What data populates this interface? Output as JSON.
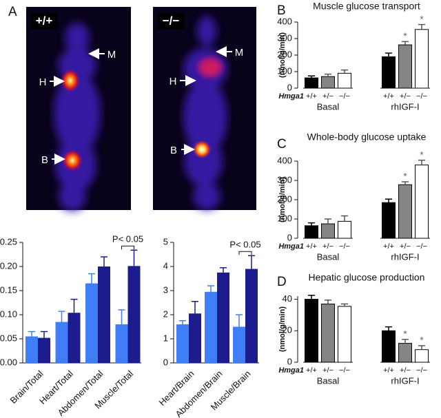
{
  "panel_labels": [
    "A",
    "B",
    "C",
    "D"
  ],
  "images": [
    {
      "genotype": "+/+",
      "markers": [
        "M",
        "H",
        "B"
      ]
    },
    {
      "genotype": "−/−",
      "markers": [
        "M",
        "H",
        "B"
      ]
    }
  ],
  "chart_data": [
    {
      "type": "bar",
      "categories": [
        "Brain/Total",
        "Heart/Total",
        "Abdomen/Total",
        "Muscle/Total"
      ],
      "series": [
        {
          "color": "#3f7ef6",
          "values": [
            0.055,
            0.085,
            0.165,
            0.08
          ],
          "errors": [
            0.01,
            0.022,
            0.02,
            0.03
          ]
        },
        {
          "color": "#1c1c8e",
          "values": [
            0.052,
            0.104,
            0.2,
            0.201
          ],
          "errors": [
            0.013,
            0.028,
            0.02,
            0.033
          ]
        }
      ],
      "ylim": [
        0,
        0.25
      ],
      "yticks": [
        {
          "value": 0,
          "label": "0.00"
        },
        {
          "value": 0.05,
          "label": "0.05"
        },
        {
          "value": 0.1,
          "label": "0.10"
        },
        {
          "value": 0.15,
          "label": "0.15"
        },
        {
          "value": 0.2,
          "label": "0.20"
        },
        {
          "value": 0.25,
          "label": "0.25"
        }
      ],
      "annotation": "P< 0.05"
    },
    {
      "type": "bar",
      "categories": [
        "Heart/Brain",
        "Abdomen/Brain",
        "Muscle/Brain"
      ],
      "series": [
        {
          "color": "#3f7ef6",
          "values": [
            1.6,
            2.95,
            1.5
          ],
          "errors": [
            0.15,
            0.25,
            0.5
          ]
        },
        {
          "color": "#1c1c8e",
          "values": [
            2.05,
            3.75,
            3.9
          ],
          "errors": [
            0.5,
            0.2,
            0.55
          ]
        }
      ],
      "ylim": [
        0,
        5
      ],
      "yticks": [
        0,
        1,
        2,
        3,
        4,
        5
      ],
      "annotation": "P< 0.05"
    },
    {
      "type": "bar",
      "title": "Muscle glucose transport",
      "y_label": "(nmol/g/min)",
      "categories": [
        "+/+",
        "+/−",
        "−/−",
        "+/+",
        "+/−",
        "−/−"
      ],
      "groups": [
        "Basal",
        "rhIGF-I"
      ],
      "row_label": "Hmga1",
      "series": [
        {
          "colors": [
            "#000000",
            "#858585",
            "#ffffff",
            "#000000",
            "#858585",
            "#ffffff"
          ],
          "values": [
            62,
            70,
            90,
            190,
            262,
            355
          ],
          "errors": [
            12,
            15,
            20,
            22,
            20,
            30
          ],
          "significance": [
            null,
            null,
            null,
            null,
            "*",
            "*"
          ]
        }
      ],
      "ylim": [
        0,
        400
      ],
      "yticks": [
        0,
        100,
        200,
        300,
        400
      ]
    },
    {
      "type": "bar",
      "title": "Whole-body glucose uptake",
      "y_label": "(nmol/g/min)",
      "categories": [
        "+/+",
        "+/−",
        "−/−",
        "+/+",
        "+/−",
        "−/−"
      ],
      "groups": [
        "Basal",
        "rhIGF-I"
      ],
      "row_label": "Hmga1",
      "series": [
        {
          "colors": [
            "#000000",
            "#858585",
            "#ffffff",
            "#000000",
            "#858585",
            "#ffffff"
          ],
          "values": [
            65,
            75,
            88,
            185,
            278,
            380
          ],
          "errors": [
            15,
            25,
            28,
            18,
            15,
            25
          ],
          "significance": [
            null,
            null,
            null,
            null,
            "*",
            "*"
          ]
        }
      ],
      "ylim": [
        0,
        400
      ],
      "yticks": [
        0,
        100,
        200,
        300,
        400
      ]
    },
    {
      "type": "bar",
      "title": "Hepatic glucose production",
      "y_label": "(nmol/g/min)",
      "categories": [
        "+/+",
        "+/−",
        "−/−",
        "+/+",
        "+/−",
        "−/−"
      ],
      "groups": [
        "Basal",
        "rhIGF-I"
      ],
      "row_label": "Hmga1",
      "series": [
        {
          "colors": [
            "#000000",
            "#858585",
            "#ffffff",
            "#000000",
            "#858585",
            "#ffffff"
          ],
          "values": [
            40,
            37,
            35.5,
            20,
            12,
            8
          ],
          "errors": [
            2.5,
            2.5,
            1.5,
            2.5,
            2.5,
            2.5
          ],
          "significance": [
            null,
            null,
            null,
            null,
            "*",
            "*"
          ]
        }
      ],
      "ylim": [
        0,
        42
      ],
      "yticks": [
        0,
        20,
        40
      ]
    }
  ]
}
